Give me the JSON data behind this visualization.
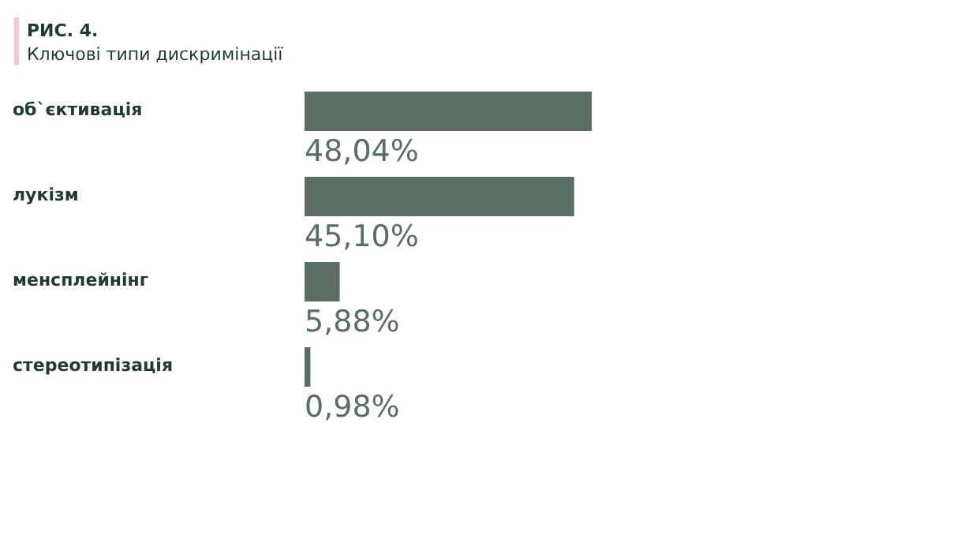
{
  "chart_data": {
    "type": "bar",
    "orientation": "horizontal",
    "title": "РИС. 4.",
    "subtitle": "Ключові типи дискримінації",
    "categories": [
      "об`єктивація",
      "лукізм",
      "менсплейнінг",
      "стереотипізація"
    ],
    "values": [
      48.04,
      45.1,
      5.88,
      0.98
    ],
    "value_labels": [
      "48,04%",
      "45,10%",
      "5,88%",
      "0,98%"
    ],
    "color": "#5b6e64",
    "tick_labels": "y"
  }
}
